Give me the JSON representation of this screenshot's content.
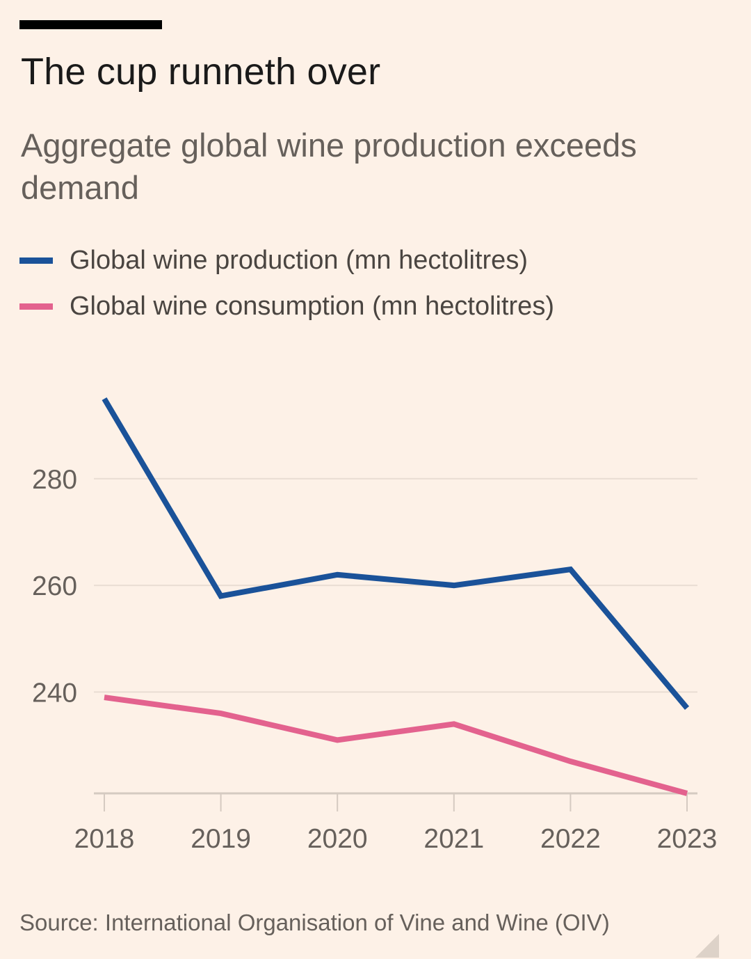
{
  "title": "The cup runneth over",
  "subtitle": "Aggregate global wine production exceeds demand",
  "source": "Source: International Organisation of Vine and Wine (OIV)",
  "chart_data": {
    "type": "line",
    "title": "The cup runneth over",
    "subtitle": "Aggregate global wine production exceeds demand",
    "x": [
      "2018",
      "2019",
      "2020",
      "2021",
      "2022",
      "2023"
    ],
    "series": [
      {
        "name": "Global wine production (mn hectolitres)",
        "color": "#1a5299",
        "values": [
          295,
          258,
          262,
          260,
          263,
          237
        ]
      },
      {
        "name": "Global wine consumption (mn hectolitres)",
        "color": "#e3628e",
        "values": [
          239,
          236,
          231,
          234,
          227,
          221
        ]
      }
    ],
    "yticks": [
      240,
      260,
      280
    ],
    "ylim": [
      221,
      298
    ],
    "grid": true,
    "legend_position": "top-left"
  }
}
